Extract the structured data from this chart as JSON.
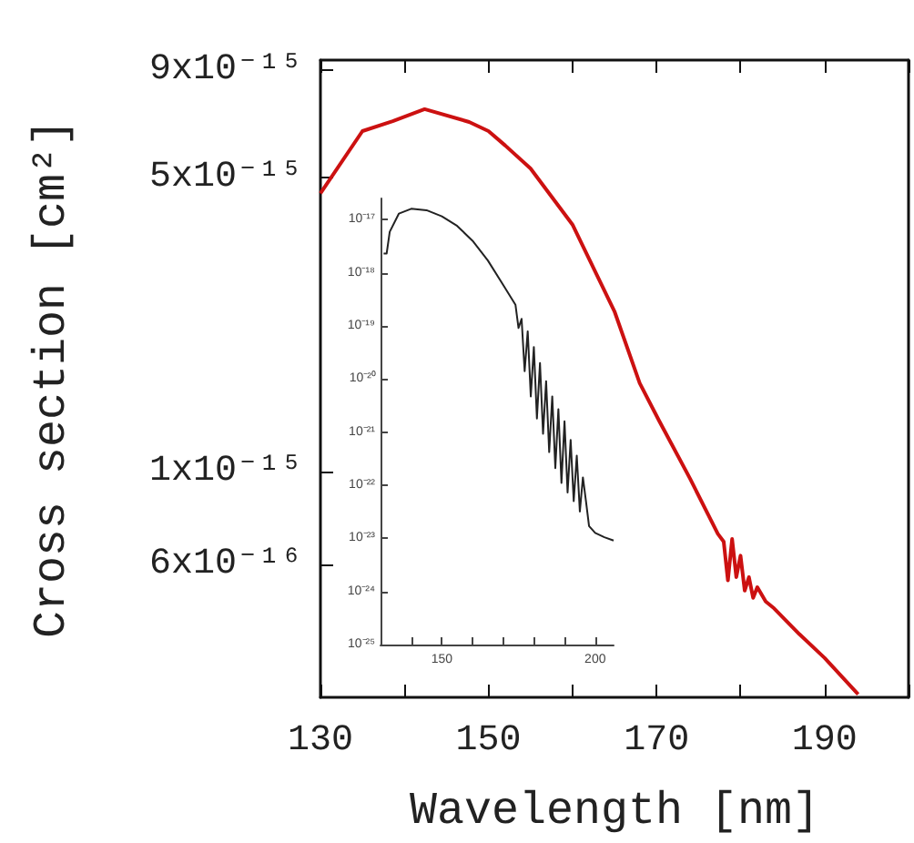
{
  "chart_data": [
    {
      "type": "line",
      "xlabel": "Wavelength [nm]",
      "ylabel": "Cross section [cm²]",
      "log": "y",
      "xlim": [
        130,
        200
      ],
      "ylim": [
        2.9e-16,
        9.5e-15
      ],
      "xticks": [
        130,
        {
          "value": 140,
          "label": null
        },
        150,
        {
          "value": 160,
          "label": null
        },
        170,
        {
          "value": 180,
          "label": null
        },
        190,
        {
          "value": 200,
          "label": null
        }
      ],
      "yticks": [
        {
          "value": 9e-15,
          "label": "9x10⁻¹⁵"
        },
        {
          "value": 5e-15,
          "label": "5x10⁻¹⁵"
        },
        {
          "value": 1e-15,
          "label": "1x10⁻¹⁵"
        },
        {
          "value": 6e-16,
          "label": "6x10⁻¹⁶"
        }
      ],
      "x": [
        130,
        135,
        138.6,
        142.4,
        147.7,
        150,
        152,
        155,
        160,
        165,
        168,
        170.3,
        174,
        177.3,
        178,
        178.5,
        179,
        179.5,
        180,
        180.5,
        181,
        181.5,
        182,
        183,
        184,
        187,
        190,
        194
      ],
      "series": [
        {
          "color": "#cc1111",
          "values": [
            4.58e-15,
            6.44e-15,
            6.8e-15,
            7.26e-15,
            6.77e-15,
            6.44e-15,
            5.95e-15,
            5.25e-15,
            3.86e-15,
            2.4e-15,
            1.62e-15,
            1.32e-15,
            9.6e-16,
            7.1e-16,
            6.8e-16,
            5.5e-16,
            6.9e-16,
            5.6e-16,
            6.3e-16,
            5.2e-16,
            5.6e-16,
            5e-16,
            5.3e-16,
            4.9e-16,
            4.72e-16,
            4.1e-16,
            3.6e-16,
            2.95e-16
          ]
        }
      ]
    },
    {
      "type": "line",
      "log": "y",
      "xlim": [
        130,
        206
      ],
      "ylim": [
        1e-25,
        2.5e-17
      ],
      "xticks": [
        {
          "value": 140,
          "label": null
        },
        150,
        {
          "value": 160,
          "label": null
        },
        {
          "value": 170,
          "label": null
        },
        {
          "value": 180,
          "label": null
        },
        {
          "value": 190,
          "label": null
        },
        200
      ],
      "yticks": [
        {
          "value": 1e-17,
          "label": "10⁻¹⁷"
        },
        {
          "value": 1e-18,
          "label": "10⁻¹⁸"
        },
        {
          "value": 1e-19,
          "label": "10⁻¹⁹"
        },
        {
          "value": 1e-20,
          "label": "10⁻²⁰"
        },
        {
          "value": 1e-21,
          "label": "10⁻²¹"
        },
        {
          "value": 1e-22,
          "label": "10⁻²²"
        },
        {
          "value": 1e-23,
          "label": "10⁻²³"
        },
        {
          "value": 1e-24,
          "label": "10⁻²⁴"
        },
        {
          "value": 1e-25,
          "label": "10⁻²⁵"
        }
      ],
      "x": [
        131,
        132,
        133,
        136,
        140,
        145,
        150,
        155,
        160,
        165,
        170,
        174,
        175,
        176,
        177,
        178,
        179,
        180,
        181,
        182,
        183,
        184,
        185,
        186,
        187,
        188,
        189,
        190,
        191,
        192,
        193,
        194,
        195,
        196,
        197,
        198,
        200,
        203,
        206
      ],
      "series": [
        {
          "color": "#222222",
          "values": [
            2.3e-18,
            2.3e-18,
            5.9e-18,
            1.3e-17,
            1.6e-17,
            1.5e-17,
            1.15e-17,
            7.6e-18,
            4e-18,
            1.7e-18,
            5.9e-19,
            2.5e-19,
            9.1e-20,
            1.35e-19,
            1.4e-20,
            7.9e-20,
            4.7e-21,
            4e-20,
            1.8e-21,
            2e-20,
            9.3e-22,
            9.1e-21,
            4.2e-22,
            4.7e-21,
            2.1e-22,
            2.7e-21,
            1.1e-22,
            1.6e-21,
            7.3e-23,
            7.1e-22,
            5e-23,
            3.6e-22,
            3.2e-23,
            1.4e-22,
            5e-23,
            1.7e-23,
            1.26e-23,
            1.05e-23,
            9.1e-24
          ]
        }
      ]
    }
  ]
}
